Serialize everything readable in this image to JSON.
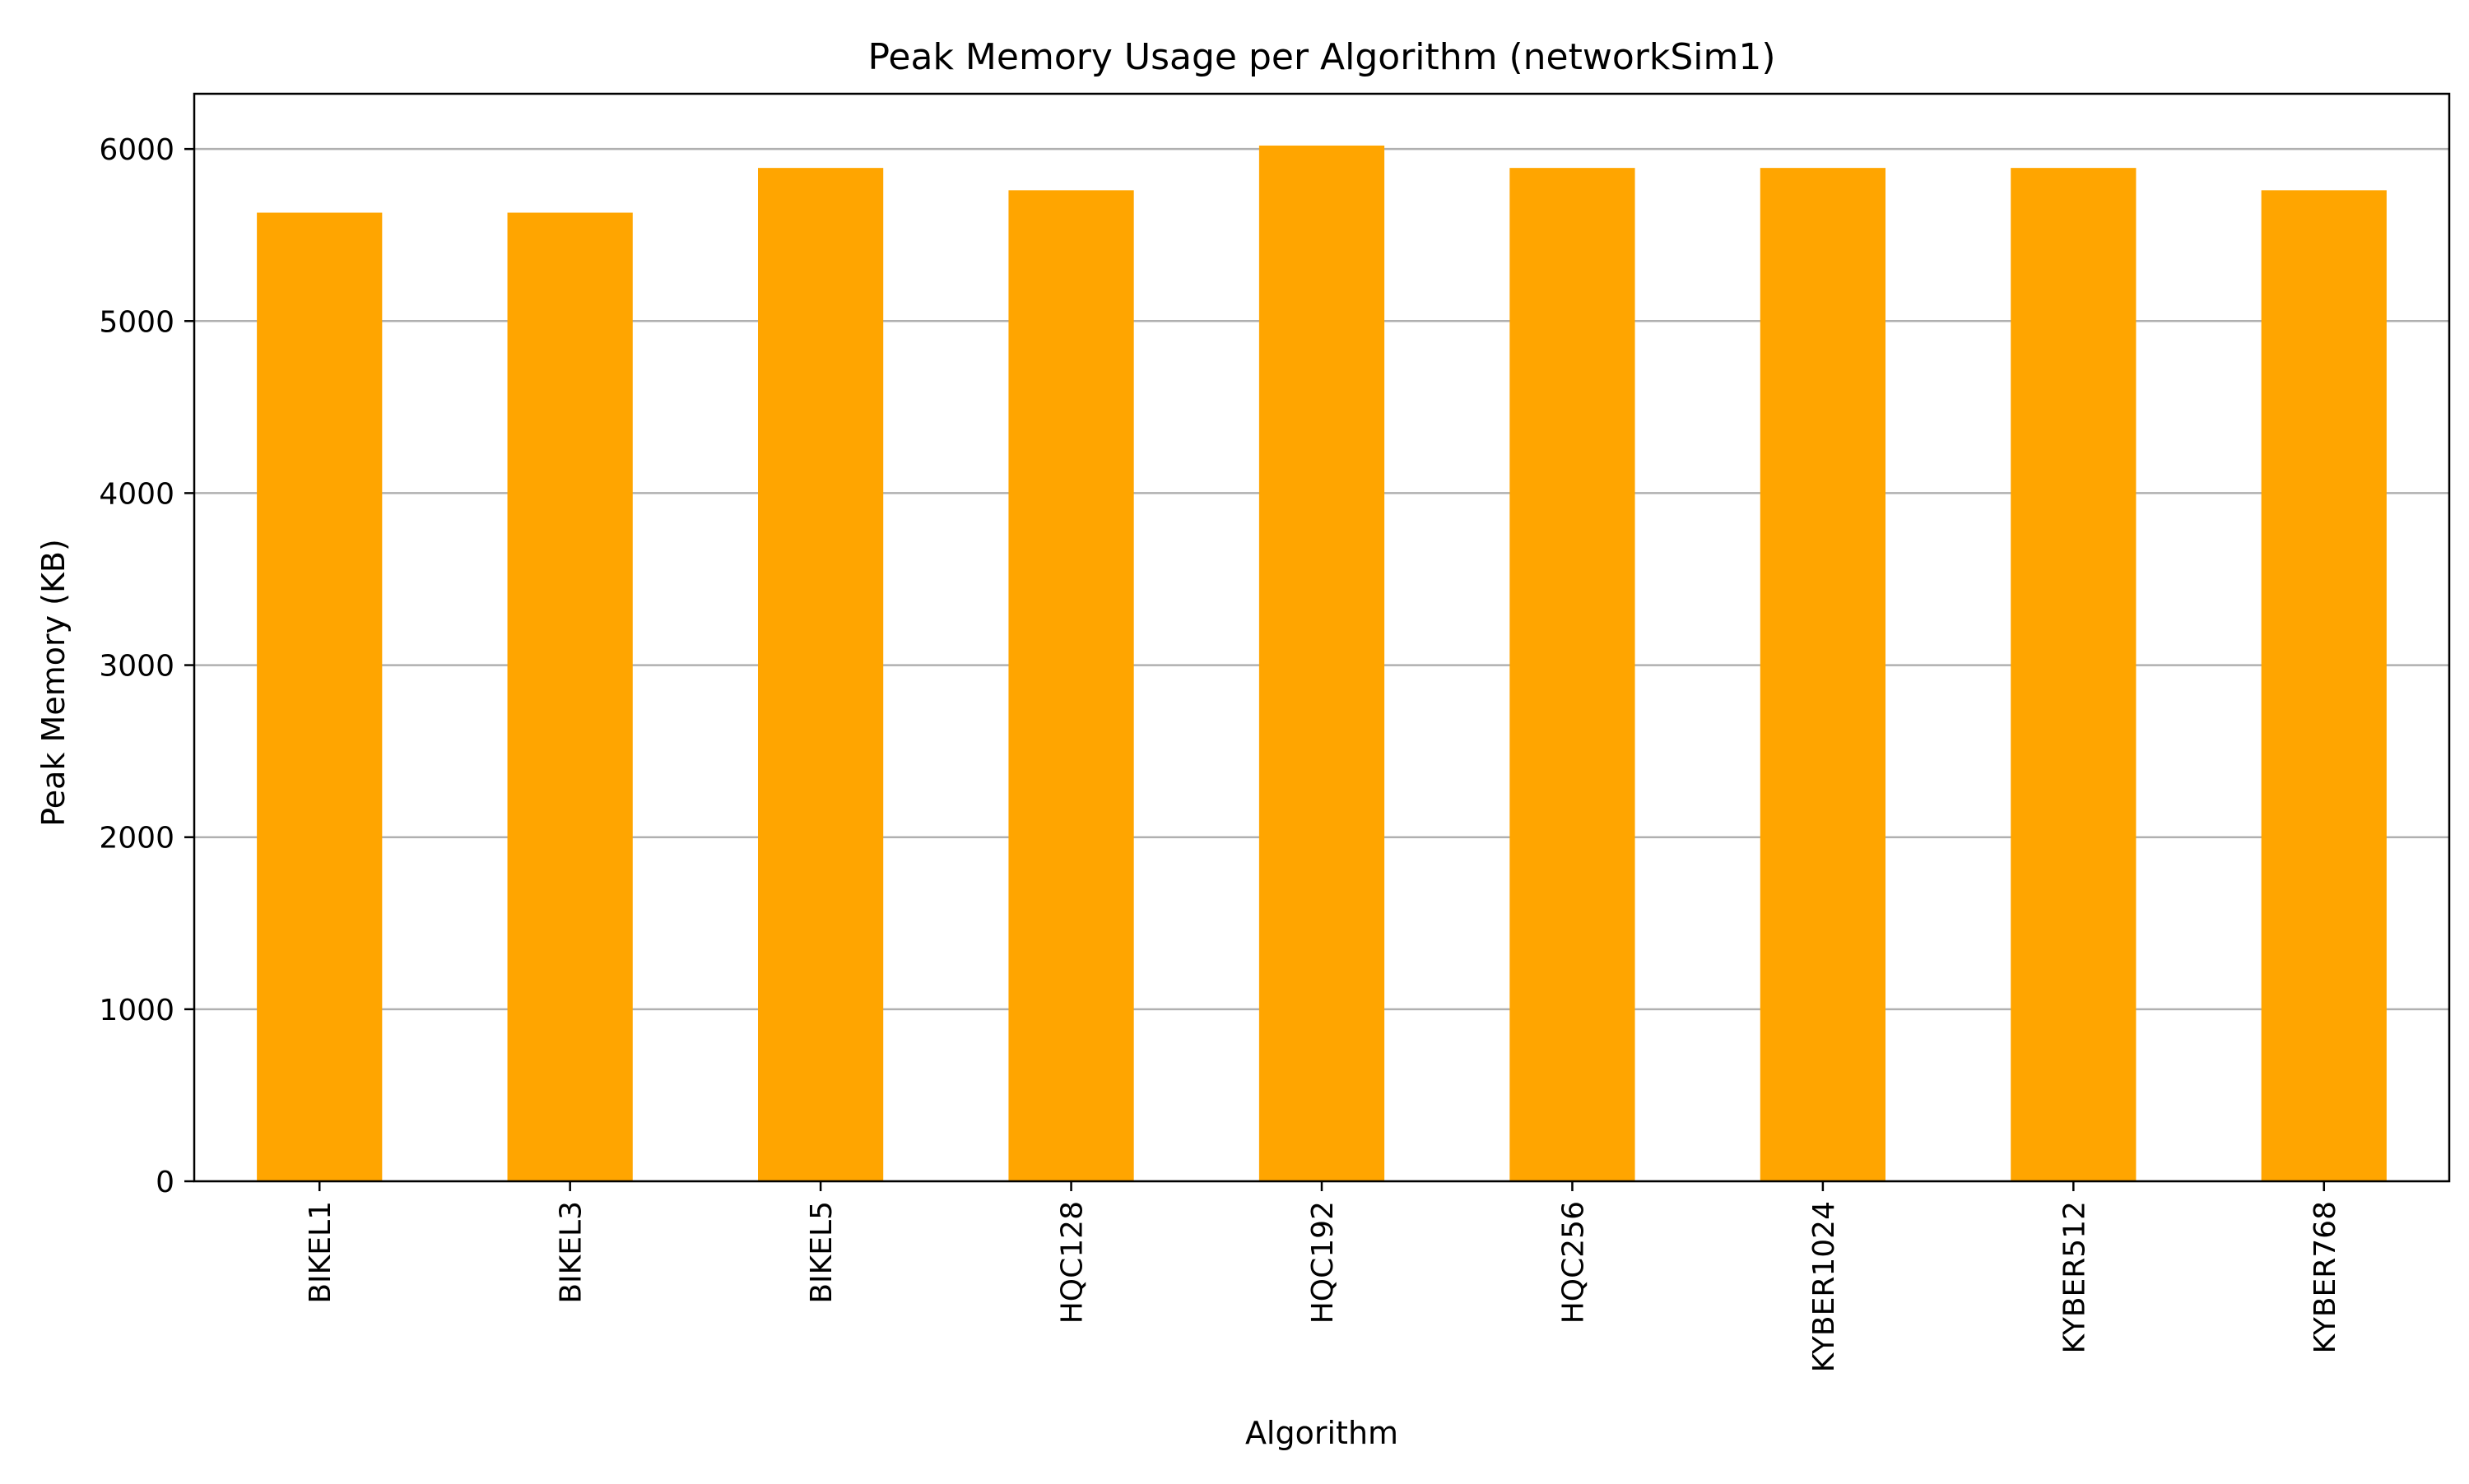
{
  "chart_data": {
    "type": "bar",
    "title": "Peak Memory Usage per Algorithm (networkSim1)",
    "xlabel": "Algorithm",
    "ylabel": "Peak Memory (KB)",
    "categories": [
      "BIKEL1",
      "BIKEL3",
      "BIKEL5",
      "HQC128",
      "HQC192",
      "HQC256",
      "KYBER1024",
      "KYBER512",
      "KYBER768"
    ],
    "values": [
      5630,
      5630,
      5890,
      5760,
      6020,
      5890,
      5890,
      5890,
      5760
    ],
    "ylim": [
      0,
      6321
    ],
    "yticks": [
      0,
      1000,
      2000,
      3000,
      4000,
      5000,
      6000
    ],
    "grid": "y",
    "legend": "none",
    "bar_color": "#FFA500",
    "grid_color": "#b0b0b0"
  }
}
